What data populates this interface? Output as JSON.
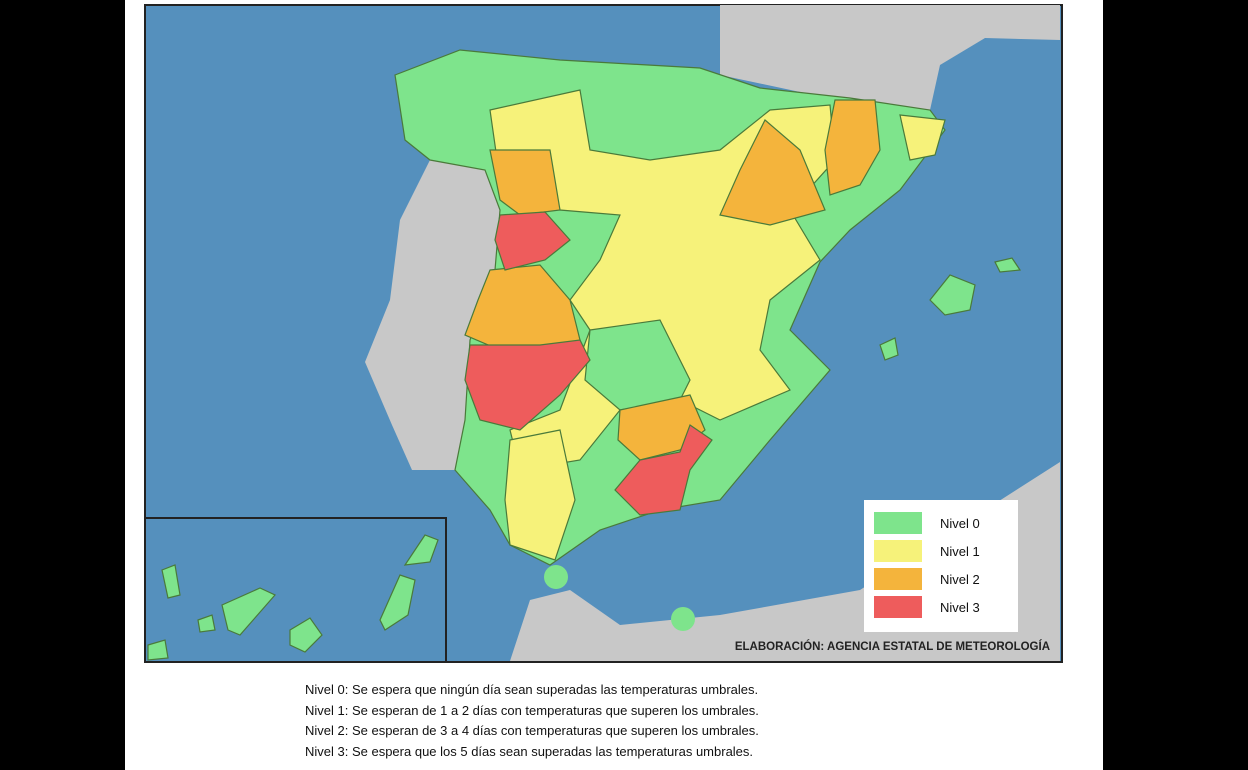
{
  "legend": {
    "items": [
      {
        "label": "Nivel 0",
        "color": "#7ee48c"
      },
      {
        "label": "Nivel 1",
        "color": "#f6f27a"
      },
      {
        "label": "Nivel 2",
        "color": "#f4b43c"
      },
      {
        "label": "Nivel 3",
        "color": "#ee5c5c"
      }
    ]
  },
  "credit": "ELABORACIÓN: AGENCIA ESTATAL DE METEOROLOGÍA",
  "notes": [
    "Nivel 0: Se espera que ningún día sean superadas las temperaturas umbrales.",
    "Nivel 1:  Se esperan de 1  a 2 días con temperaturas que superen los umbrales.",
    "Nivel 2: Se esperan de 3 a 4 días con temperaturas que superen los umbrales.",
    "Nivel 3: Se espera que los 5 días sean superadas las temperaturas umbrales."
  ]
}
